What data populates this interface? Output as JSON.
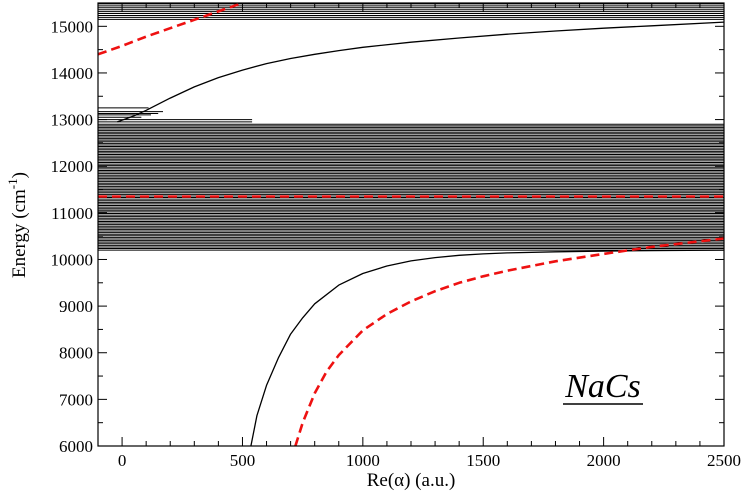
{
  "chart_data": {
    "type": "line",
    "title": "",
    "xlabel": "Re(α) (a.u.)",
    "ylabel": "Energy (cm",
    "ylabel_sup": "-1",
    "ylabel_close": ")",
    "annotation": "NaCs",
    "xlim": [
      -100,
      2500
    ],
    "ylim": [
      6000,
      15500
    ],
    "x_ticks": [
      0,
      500,
      1000,
      1500,
      2000,
      2500
    ],
    "y_ticks": [
      6000,
      7000,
      8000,
      9000,
      10000,
      11000,
      12000,
      13000,
      14000,
      15000
    ],
    "x_tick_labels": [
      "0",
      "500",
      "1000",
      "1500",
      "2000",
      "2500"
    ],
    "y_tick_labels": [
      "6000",
      "7000",
      "8000",
      "9000",
      "10000",
      "11000",
      "12000",
      "13000",
      "14000",
      "15000"
    ],
    "grid": false,
    "colors": {
      "curve": "#000000",
      "dashed": "#ee1111"
    },
    "series": [
      {
        "style": "solid-black",
        "x": [
          535,
          560,
          600,
          650,
          700,
          750,
          800,
          900,
          1000,
          1100,
          1200,
          1300,
          1400,
          1500,
          1600,
          1800,
          2000,
          2200,
          2500
        ],
        "y": [
          6000,
          6650,
          7300,
          7900,
          8400,
          8750,
          9050,
          9450,
          9700,
          9860,
          9970,
          10040,
          10090,
          10120,
          10140,
          10165,
          10180,
          10190,
          10200
        ]
      },
      {
        "style": "dashed-red",
        "x": [
          720,
          750,
          800,
          850,
          900,
          1000,
          1100,
          1200,
          1300,
          1400,
          1500,
          1600,
          1700,
          1800,
          2000,
          2200,
          2500
        ],
        "y": [
          6000,
          6500,
          7130,
          7600,
          7950,
          8480,
          8830,
          9100,
          9320,
          9500,
          9640,
          9760,
          9860,
          9960,
          10120,
          10270,
          10450
        ]
      },
      {
        "style": "solid-black",
        "x": [
          -20,
          50,
          100,
          150,
          200,
          300,
          400,
          500,
          600,
          700,
          800,
          900,
          1000,
          1200,
          1400,
          1600,
          1800,
          2000,
          2200,
          2500
        ],
        "y": [
          12950,
          13080,
          13200,
          13330,
          13460,
          13700,
          13900,
          14060,
          14200,
          14310,
          14400,
          14480,
          14550,
          14660,
          14750,
          14830,
          14900,
          14960,
          15010,
          15090
        ]
      },
      {
        "style": "dashed-red",
        "x": [
          -100,
          0,
          100,
          200,
          300,
          400,
          500
        ],
        "y": [
          14400,
          14580,
          14780,
          14960,
          15140,
          15320,
          15500
        ]
      },
      {
        "style": "dashed-red",
        "x": [
          -100,
          2500
        ],
        "y": [
          11350,
          11350
        ]
      }
    ],
    "dense_band": {
      "from": 10200,
      "to": 12900,
      "count": 80
    },
    "top_band": {
      "from": 15150,
      "to": 15480,
      "count": 9
    },
    "short_levels": [
      {
        "y": 13050,
        "x_end": 80
      },
      {
        "y": 13100,
        "x_end": 120
      },
      {
        "y": 13130,
        "x_end": 150
      },
      {
        "y": 13170,
        "x_end": 170
      },
      {
        "y": 13250,
        "x_end": 110
      },
      {
        "y": 13000,
        "x_end": 540
      },
      {
        "y": 12950,
        "x_end": 540
      }
    ]
  }
}
